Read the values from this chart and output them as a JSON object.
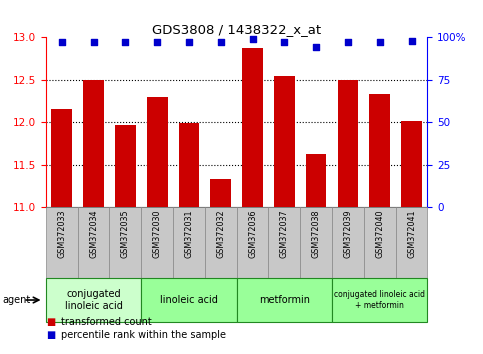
{
  "title": "GDS3808 / 1438322_x_at",
  "samples": [
    "GSM372033",
    "GSM372034",
    "GSM372035",
    "GSM372030",
    "GSM372031",
    "GSM372032",
    "GSM372036",
    "GSM372037",
    "GSM372038",
    "GSM372039",
    "GSM372040",
    "GSM372041"
  ],
  "bar_values": [
    12.15,
    12.49,
    11.97,
    12.3,
    11.99,
    11.33,
    12.87,
    12.54,
    11.62,
    12.5,
    12.33,
    12.01
  ],
  "percentile_values": [
    97,
    97,
    97,
    97,
    97,
    97,
    99,
    97,
    94,
    97,
    97,
    98
  ],
  "bar_color": "#cc0000",
  "dot_color": "#0000cc",
  "ylim_left": [
    11,
    13
  ],
  "ylim_right": [
    0,
    100
  ],
  "yticks_left": [
    11,
    11.5,
    12,
    12.5,
    13
  ],
  "yticks_right": [
    0,
    25,
    50,
    75,
    100
  ],
  "group_starts": [
    0,
    3,
    6,
    9
  ],
  "group_ends": [
    3,
    6,
    9,
    12
  ],
  "group_labels": [
    "conjugated\nlinoleic acid",
    "linoleic acid",
    "metformin",
    "conjugated linoleic acid\n+ metformin"
  ],
  "group_colors": [
    "#ccffcc",
    "#99ff99",
    "#99ff99",
    "#99ff99"
  ],
  "group_fontsizes": [
    7,
    7,
    7,
    5.5
  ],
  "sample_box_color": "#c8c8c8",
  "agent_label": "agent",
  "legend_red_label": "transformed count",
  "legend_blue_label": "percentile rank within the sample",
  "dotted_lines": [
    11.5,
    12.0,
    12.5
  ]
}
